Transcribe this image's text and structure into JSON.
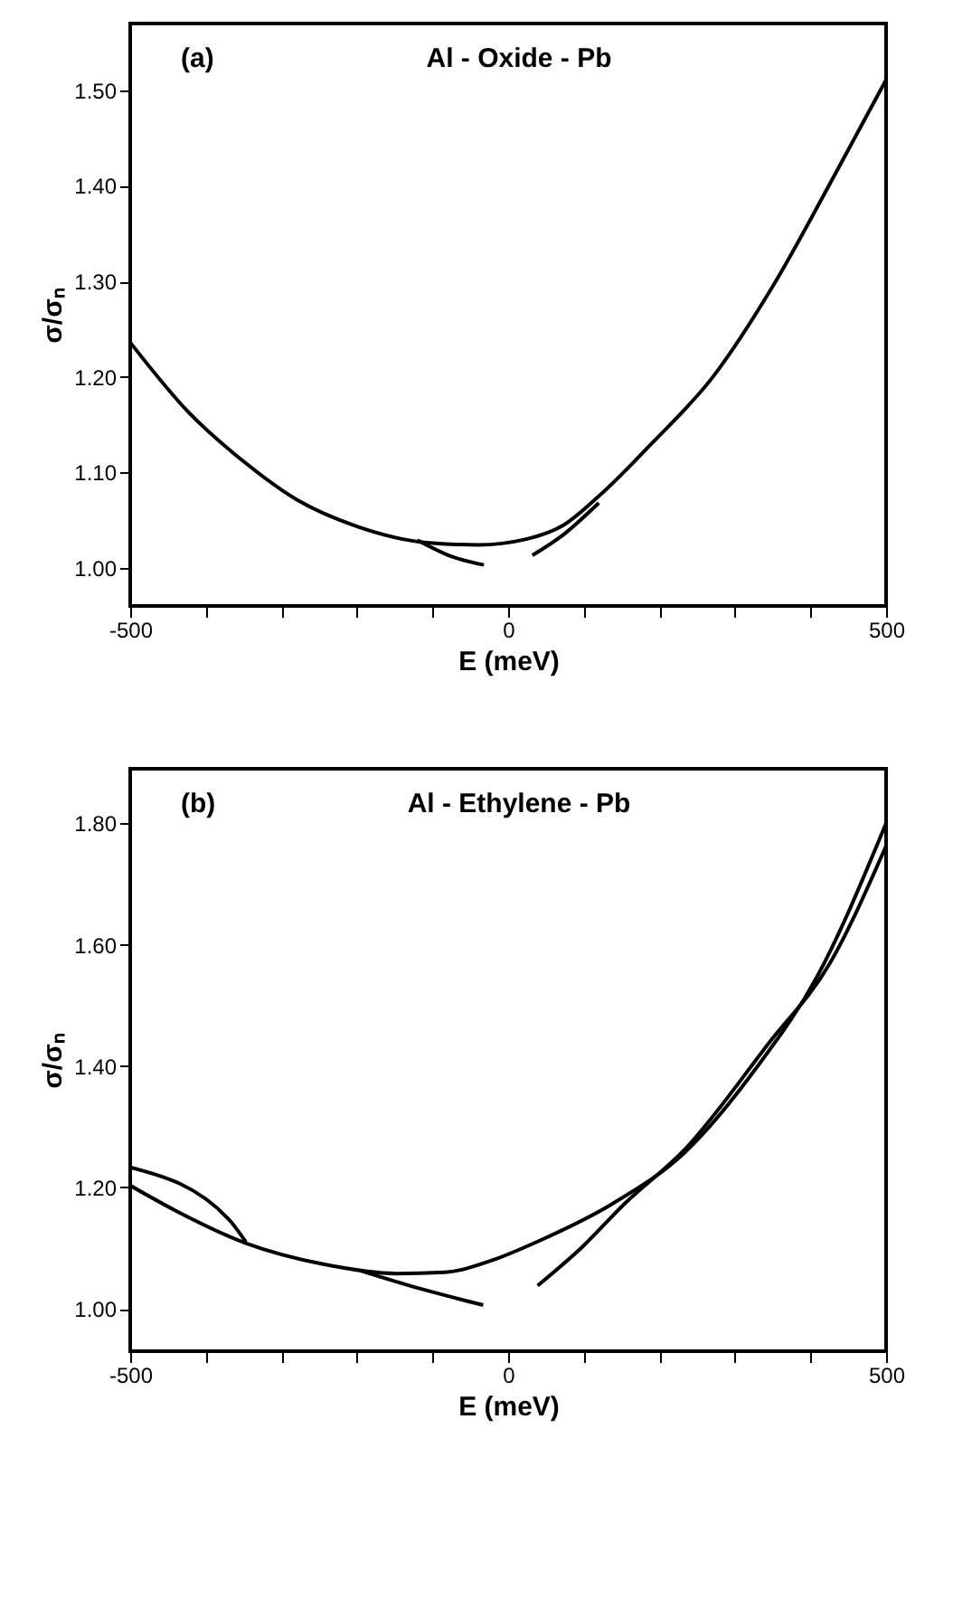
{
  "chart_data": [
    {
      "type": "line",
      "xlabel": "E (meV)",
      "ylabel": "σ/σₙ",
      "annotations": [
        "(a)",
        "Al - Oxide - Pb"
      ],
      "xlim": [
        -500,
        500
      ],
      "ylim": [
        0.96,
        1.57
      ],
      "xticks": [
        -500,
        {
          "value": -400,
          "label": null
        },
        {
          "value": -300,
          "label": null
        },
        {
          "value": -200,
          "label": null
        },
        {
          "value": -100,
          "label": null
        },
        0,
        {
          "value": 100,
          "label": null
        },
        {
          "value": 200,
          "label": null
        },
        {
          "value": 300,
          "label": null
        },
        {
          "value": 400,
          "label": null
        },
        500
      ],
      "yticks": [
        {
          "value": 1.0,
          "label": "1.00"
        },
        {
          "value": 1.1,
          "label": "1.10"
        },
        {
          "value": 1.2,
          "label": "1.20"
        },
        {
          "value": 1.3,
          "label": "1.30"
        },
        {
          "value": 1.4,
          "label": "1.40"
        },
        {
          "value": 1.5,
          "label": "1.50"
        }
      ],
      "series": [
        {
          "color": "#000000",
          "x": [
            -500,
            -423,
            -351,
            -279,
            -199,
            -104,
            -40,
            24,
            72,
            120,
            191,
            271,
            351,
            431,
            500
          ],
          "values": [
            1.236,
            1.163,
            1.112,
            1.071,
            1.043,
            1.026,
            1.024,
            1.03,
            1.044,
            1.075,
            1.131,
            1.2,
            1.296,
            1.41,
            1.511
          ]
        },
        {
          "color": "#000000",
          "x": [
            -120,
            -72,
            -32
          ],
          "values": [
            1.029,
            1.011,
            1.003
          ]
        },
        {
          "color": "#000000",
          "x": [
            32,
            72,
            120
          ],
          "values": [
            1.013,
            1.034,
            1.068
          ]
        }
      ]
    },
    {
      "type": "line",
      "xlabel": "E (meV)",
      "ylabel": "σ/σₙ",
      "annotations": [
        "(b)",
        "Al - Ethylene - Pb"
      ],
      "xlim": [
        -500,
        500
      ],
      "ylim": [
        0.93,
        1.89
      ],
      "xticks": [
        -500,
        {
          "value": -400,
          "label": null
        },
        {
          "value": -300,
          "label": null
        },
        {
          "value": -200,
          "label": null
        },
        {
          "value": -100,
          "label": null
        },
        0,
        {
          "value": 100,
          "label": null
        },
        {
          "value": 200,
          "label": null
        },
        {
          "value": 300,
          "label": null
        },
        {
          "value": 400,
          "label": null
        },
        500
      ],
      "yticks": [
        {
          "value": 1.0,
          "label": "1.00"
        },
        {
          "value": 1.2,
          "label": "1.20"
        },
        {
          "value": 1.4,
          "label": "1.40"
        },
        {
          "value": 1.6,
          "label": "1.60"
        },
        {
          "value": 1.8,
          "label": "1.80"
        }
      ],
      "series": [
        {
          "color": "#000000",
          "x": [
            -500,
            -442,
            -347,
            -243,
            -148,
            -84,
            -21,
            43,
            138,
            234,
            329,
            409,
            500
          ],
          "values": [
            1.203,
            1.163,
            1.108,
            1.073,
            1.058,
            1.06,
            1.08,
            1.113,
            1.173,
            1.258,
            1.398,
            1.548,
            1.8
          ]
        },
        {
          "color": "#000000",
          "x": [
            -500,
            -370,
            -347
          ],
          "values": [
            1.233,
            1.148,
            1.11
          ]
        },
        {
          "color": "#000000",
          "x": [
            -196,
            -116,
            -33
          ],
          "values": [
            1.063,
            1.033,
            1.006
          ]
        },
        {
          "color": "#000000",
          "x": [
            39,
            99,
            154,
            234,
            345,
            425,
            500
          ],
          "values": [
            1.038,
            1.103,
            1.173,
            1.263,
            1.438,
            1.568,
            1.763
          ]
        }
      ]
    }
  ]
}
